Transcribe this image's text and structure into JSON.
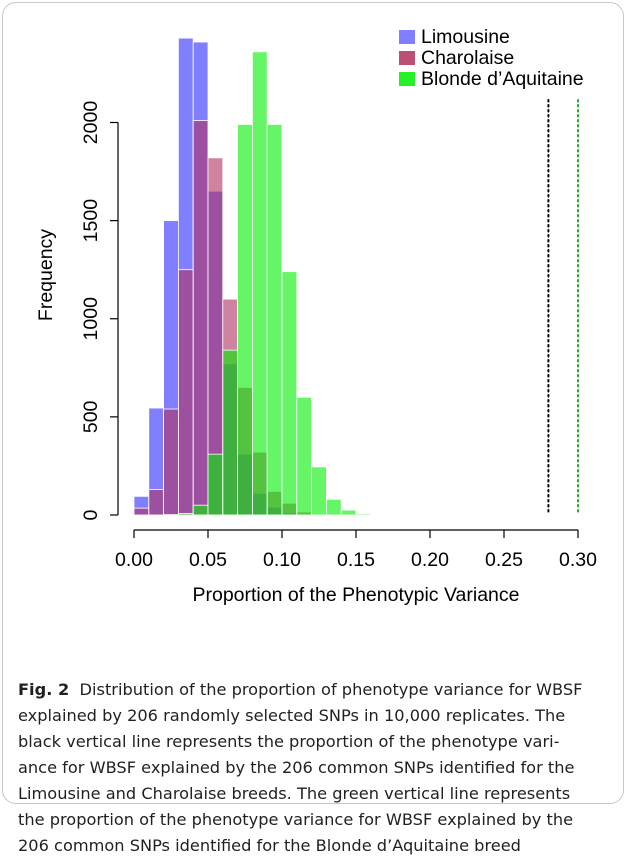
{
  "chart_data": {
    "type": "bar",
    "title": "",
    "xlabel": "Proportion of the Phenotypic Variance",
    "ylabel": "Frequency",
    "xlim": [
      0,
      0.3
    ],
    "ylim": [
      0,
      2400
    ],
    "x_ticks": [
      "0.00",
      "0.05",
      "0.10",
      "0.15",
      "0.20",
      "0.25",
      "0.30"
    ],
    "x_tick_values": [
      0,
      0.05,
      0.1,
      0.15,
      0.2,
      0.25,
      0.3
    ],
    "y_ticks": [
      "0",
      "500",
      "1000",
      "1500",
      "2000"
    ],
    "y_tick_values": [
      0,
      500,
      1000,
      1500,
      2000
    ],
    "bin_width": 0.01,
    "legend_position": "top-right",
    "series": [
      {
        "name": "Limousine",
        "color": "#7878ff",
        "bin_starts": [
          0.0,
          0.01,
          0.02,
          0.03,
          0.04,
          0.05,
          0.06,
          0.07,
          0.08,
          0.09,
          0.1,
          0.11
        ],
        "values": [
          95,
          545,
          1500,
          2430,
          2410,
          1650,
          770,
          310,
          110,
          40,
          10,
          3
        ]
      },
      {
        "name": "Charolaise",
        "color": "#b03060",
        "bin_starts": [
          0.0,
          0.01,
          0.02,
          0.03,
          0.04,
          0.05,
          0.06,
          0.07,
          0.08,
          0.09,
          0.1,
          0.11,
          0.12
        ],
        "values": [
          35,
          130,
          540,
          1250,
          2010,
          1820,
          1100,
          650,
          320,
          120,
          60,
          15,
          4
        ]
      },
      {
        "name": "Blonde d’Aquitaine",
        "color": "#00ee00",
        "bin_starts": [
          0.02,
          0.03,
          0.04,
          0.05,
          0.06,
          0.07,
          0.08,
          0.09,
          0.1,
          0.11,
          0.12,
          0.13,
          0.14,
          0.15
        ],
        "values": [
          2,
          8,
          50,
          310,
          840,
          1990,
          2360,
          1990,
          1240,
          600,
          245,
          80,
          25,
          6
        ]
      }
    ],
    "vertical_lines": [
      {
        "x": 0.28,
        "color": "#000000",
        "style": "dotted"
      },
      {
        "x": 0.3,
        "color": "#22aa22",
        "style": "dotted"
      }
    ]
  },
  "caption": {
    "label": "Fig. 2",
    "lines": [
      "Distribution of the proportion of phenotype variance for WBSF",
      "explained by 206 randomly selected SNPs in 10,000 replicates. The",
      "black vertical line represents the proportion of the phenotype vari-",
      "ance for WBSF explained by the 206 common SNPs identified for the",
      "Limousine and Charolaise breeds. The green vertical line represents",
      "the proportion of the phenotype variance for WBSF explained by the",
      "206 common SNPs identified for the Blonde d’Aquitaine breed"
    ]
  }
}
